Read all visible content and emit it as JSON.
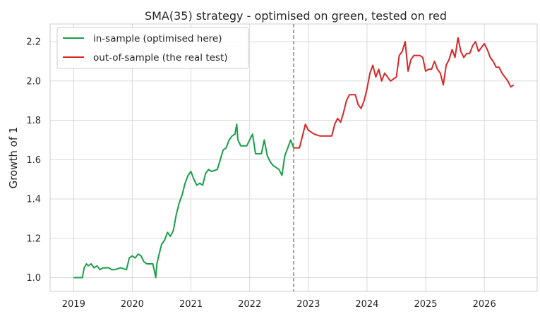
{
  "chart_data": {
    "type": "line",
    "title": "SMA(35) strategy - optimised on green, tested on red",
    "xlabel": "",
    "ylabel": "Growth of 1",
    "xlim": [
      2018.6,
      2026.9
    ],
    "ylim": [
      0.93,
      2.29
    ],
    "x_ticks": [
      2019,
      2020,
      2021,
      2022,
      2023,
      2024,
      2025,
      2026
    ],
    "x_tick_labels": [
      "2019",
      "2020",
      "2021",
      "2022",
      "2023",
      "2024",
      "2025",
      "2026"
    ],
    "y_ticks": [
      1.0,
      1.2,
      1.4,
      1.6,
      1.8,
      2.0,
      2.2
    ],
    "y_tick_labels": [
      "1.0",
      "1.2",
      "1.4",
      "1.6",
      "1.8",
      "2.0",
      "2.2"
    ],
    "grid": true,
    "legend": "top-left",
    "split_line_x": 2022.75,
    "series": [
      {
        "name": "in-sample (optimised here)",
        "color": "#1a9e4a",
        "x": [
          2019.0,
          2019.15,
          2019.18,
          2019.22,
          2019.25,
          2019.3,
          2019.35,
          2019.4,
          2019.45,
          2019.5,
          2019.55,
          2019.6,
          2019.65,
          2019.7,
          2019.8,
          2019.9,
          2019.95,
          2020.0,
          2020.05,
          2020.1,
          2020.15,
          2020.2,
          2020.25,
          2020.3,
          2020.35,
          2020.38,
          2020.4,
          2020.42,
          2020.45,
          2020.5,
          2020.55,
          2020.6,
          2020.65,
          2020.7,
          2020.75,
          2020.8,
          2020.85,
          2020.9,
          2020.95,
          2021.0,
          2021.05,
          2021.1,
          2021.15,
          2021.2,
          2021.25,
          2021.3,
          2021.35,
          2021.45,
          2021.5,
          2021.55,
          2021.6,
          2021.65,
          2021.7,
          2021.75,
          2021.78,
          2021.8,
          2021.85,
          2021.9,
          2021.95,
          2022.0,
          2022.05,
          2022.1,
          2022.15,
          2022.2,
          2022.25,
          2022.3,
          2022.35,
          2022.4,
          2022.45,
          2022.5,
          2022.55,
          2022.6,
          2022.65,
          2022.7,
          2022.75
        ],
        "values": [
          1.0,
          1.0,
          1.05,
          1.07,
          1.06,
          1.07,
          1.05,
          1.06,
          1.04,
          1.05,
          1.05,
          1.05,
          1.04,
          1.04,
          1.05,
          1.04,
          1.1,
          1.11,
          1.1,
          1.12,
          1.11,
          1.08,
          1.07,
          1.07,
          1.07,
          1.03,
          1.0,
          1.07,
          1.11,
          1.17,
          1.19,
          1.23,
          1.21,
          1.24,
          1.32,
          1.38,
          1.42,
          1.48,
          1.52,
          1.54,
          1.5,
          1.47,
          1.48,
          1.47,
          1.53,
          1.55,
          1.54,
          1.55,
          1.6,
          1.65,
          1.66,
          1.7,
          1.72,
          1.73,
          1.78,
          1.7,
          1.67,
          1.67,
          1.67,
          1.7,
          1.73,
          1.63,
          1.63,
          1.63,
          1.7,
          1.62,
          1.59,
          1.57,
          1.56,
          1.55,
          1.52,
          1.62,
          1.66,
          1.7,
          1.66
        ]
      },
      {
        "name": "out-of-sample (the real test)",
        "color": "#d62728",
        "x": [
          2022.75,
          2022.85,
          2022.9,
          2022.95,
          2023.0,
          2023.05,
          2023.1,
          2023.2,
          2023.25,
          2023.3,
          2023.4,
          2023.45,
          2023.5,
          2023.55,
          2023.6,
          2023.65,
          2023.7,
          2023.8,
          2023.85,
          2023.9,
          2023.95,
          2024.0,
          2024.05,
          2024.1,
          2024.15,
          2024.2,
          2024.25,
          2024.3,
          2024.4,
          2024.5,
          2024.55,
          2024.6,
          2024.65,
          2024.7,
          2024.75,
          2024.8,
          2024.85,
          2024.9,
          2024.95,
          2025.0,
          2025.05,
          2025.1,
          2025.15,
          2025.2,
          2025.25,
          2025.3,
          2025.35,
          2025.4,
          2025.45,
          2025.5,
          2025.55,
          2025.6,
          2025.65,
          2025.7,
          2025.75,
          2025.8,
          2025.85,
          2025.9,
          2025.95,
          2026.0,
          2026.05,
          2026.1,
          2026.15,
          2026.2,
          2026.25,
          2026.3,
          2026.35,
          2026.4,
          2026.45,
          2026.5
        ],
        "values": [
          1.66,
          1.66,
          1.72,
          1.78,
          1.75,
          1.74,
          1.73,
          1.72,
          1.72,
          1.72,
          1.72,
          1.78,
          1.81,
          1.79,
          1.84,
          1.9,
          1.93,
          1.93,
          1.88,
          1.86,
          1.9,
          1.96,
          2.04,
          2.08,
          2.02,
          2.06,
          2.0,
          2.04,
          2.0,
          2.02,
          2.13,
          2.15,
          2.2,
          2.05,
          2.11,
          2.13,
          2.13,
          2.13,
          2.12,
          2.05,
          2.06,
          2.06,
          2.1,
          2.06,
          2.04,
          1.98,
          2.08,
          2.11,
          2.16,
          2.12,
          2.22,
          2.15,
          2.12,
          2.14,
          2.14,
          2.18,
          2.2,
          2.15,
          2.17,
          2.19,
          2.16,
          2.12,
          2.1,
          2.07,
          2.07,
          2.04,
          2.02,
          2.0,
          1.97,
          1.98
        ]
      }
    ]
  }
}
